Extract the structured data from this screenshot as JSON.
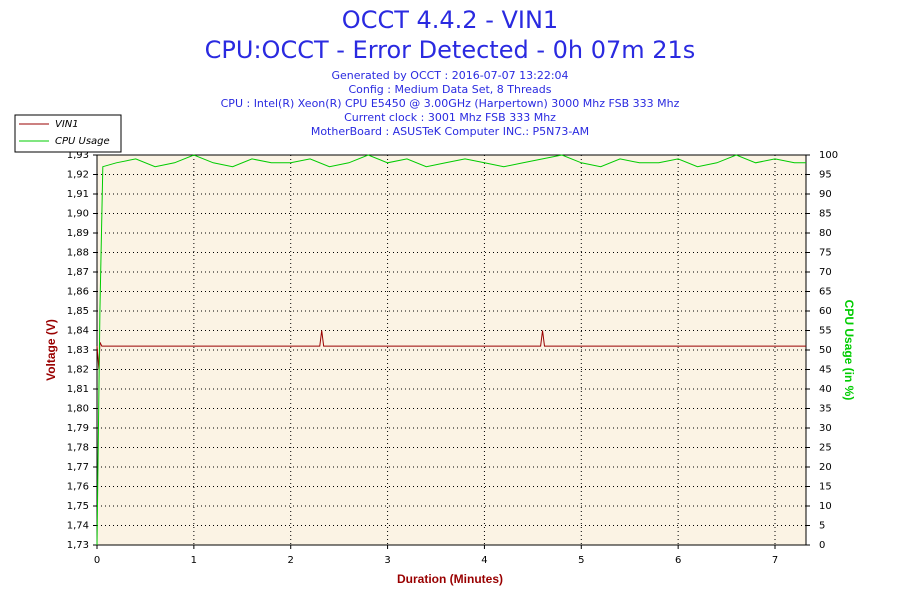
{
  "chart_data": {
    "type": "line",
    "title": "OCCT 4.4.2 - VIN1",
    "subtitle": "CPU:OCCT - Error Detected - 0h 07m 21s",
    "info_lines": [
      "Generated by OCCT : 2016-07-07 13:22:04",
      "Config : Medium Data Set, 8 Threads",
      "CPU : Intel(R) Xeon(R) CPU E5450 @ 3.00GHz (Harpertown) 3000 Mhz FSB 333 Mhz",
      "Current clock : 3001 Mhz FSB 333 Mhz",
      "MotherBoard : ASUSTeK Computer INC.: P5N73-AM"
    ],
    "xlabel": "Duration (Minutes)",
    "ylabel": "Voltage (V)",
    "y2label": "CPU Usage (in %)",
    "xlim": [
      0,
      7.32
    ],
    "xticks": [
      0,
      1,
      2,
      3,
      4,
      5,
      6,
      7
    ],
    "ylim": [
      1.73,
      1.93
    ],
    "yticks": [
      {
        "value": 1.73,
        "label": "1,73"
      },
      {
        "value": 1.74,
        "label": "1,74"
      },
      {
        "value": 1.75,
        "label": "1,75"
      },
      {
        "value": 1.76,
        "label": "1,76"
      },
      {
        "value": 1.77,
        "label": "1,77"
      },
      {
        "value": 1.78,
        "label": "1,78"
      },
      {
        "value": 1.79,
        "label": "1,79"
      },
      {
        "value": 1.8,
        "label": "1,80"
      },
      {
        "value": 1.81,
        "label": "1,81"
      },
      {
        "value": 1.82,
        "label": "1,82"
      },
      {
        "value": 1.83,
        "label": "1,83"
      },
      {
        "value": 1.84,
        "label": "1,84"
      },
      {
        "value": 1.85,
        "label": "1,85"
      },
      {
        "value": 1.86,
        "label": "1,86"
      },
      {
        "value": 1.87,
        "label": "1,87"
      },
      {
        "value": 1.88,
        "label": "1,88"
      },
      {
        "value": 1.89,
        "label": "1,89"
      },
      {
        "value": 1.9,
        "label": "1,90"
      },
      {
        "value": 1.91,
        "label": "1,91"
      },
      {
        "value": 1.92,
        "label": "1,92"
      },
      {
        "value": 1.93,
        "label": "1,93"
      }
    ],
    "y2lim": [
      0,
      100
    ],
    "y2ticks": [
      0,
      5,
      10,
      15,
      20,
      25,
      30,
      35,
      40,
      45,
      50,
      55,
      60,
      65,
      70,
      75,
      80,
      85,
      90,
      95,
      100
    ],
    "grid": true,
    "legend": "top-left",
    "series": [
      {
        "name": "VIN1",
        "color": "#990000",
        "x": [
          0,
          0.02,
          0.03,
          0.05,
          2.3,
          2.32,
          2.34,
          4.58,
          4.6,
          4.62,
          7.32
        ],
        "values": [
          1.832,
          1.82,
          1.834,
          1.832,
          1.832,
          1.84,
          1.832,
          1.832,
          1.84,
          1.832,
          1.832
        ]
      },
      {
        "name": "CPU Usage",
        "color": "#00cc00",
        "axis": "y2",
        "x": [
          0,
          0.03,
          0.06,
          0.2,
          0.4,
          0.6,
          0.8,
          1.0,
          1.2,
          1.4,
          1.6,
          1.8,
          2.0,
          2.2,
          2.4,
          2.6,
          2.8,
          3.0,
          3.2,
          3.4,
          3.6,
          3.8,
          4.0,
          4.2,
          4.4,
          4.6,
          4.8,
          5.0,
          5.2,
          5.4,
          5.6,
          5.8,
          6.0,
          6.2,
          6.4,
          6.6,
          6.8,
          7.0,
          7.2,
          7.32
        ],
        "values": [
          0,
          60,
          97,
          98,
          99,
          97,
          98,
          100,
          98,
          97,
          99,
          98,
          98,
          99,
          97,
          98,
          100,
          98,
          99,
          97,
          98,
          99,
          98,
          97,
          98,
          99,
          100,
          98,
          97,
          99,
          98,
          98,
          99,
          97,
          98,
          100,
          98,
          99,
          98,
          98
        ]
      }
    ]
  }
}
